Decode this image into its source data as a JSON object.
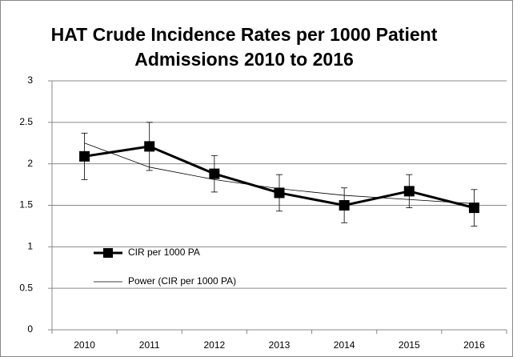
{
  "chart_data": {
    "type": "line",
    "title": [
      "HAT Crude Incidence Rates per 1000 Patient",
      "Admissions 2010 to 2016"
    ],
    "categories": [
      "2010",
      "2011",
      "2012",
      "2013",
      "2014",
      "2015",
      "2016"
    ],
    "series": [
      {
        "name": "CIR per 1000 PA",
        "color": "#000000",
        "values": [
          2.09,
          2.21,
          1.88,
          1.65,
          1.5,
          1.67,
          1.47
        ],
        "errors": [
          0.28,
          0.29,
          0.22,
          0.22,
          0.21,
          0.2,
          0.22
        ]
      },
      {
        "name": "Power (CIR per 1000 PA)",
        "color": "#000000",
        "values": [
          2.25,
          1.96,
          1.81,
          1.7,
          1.62,
          1.57,
          1.52
        ]
      }
    ],
    "ylim": [
      0,
      3
    ],
    "yticks": [
      0,
      0.5,
      1,
      1.5,
      2,
      2.5,
      3
    ],
    "grid": true,
    "legend": "left"
  }
}
